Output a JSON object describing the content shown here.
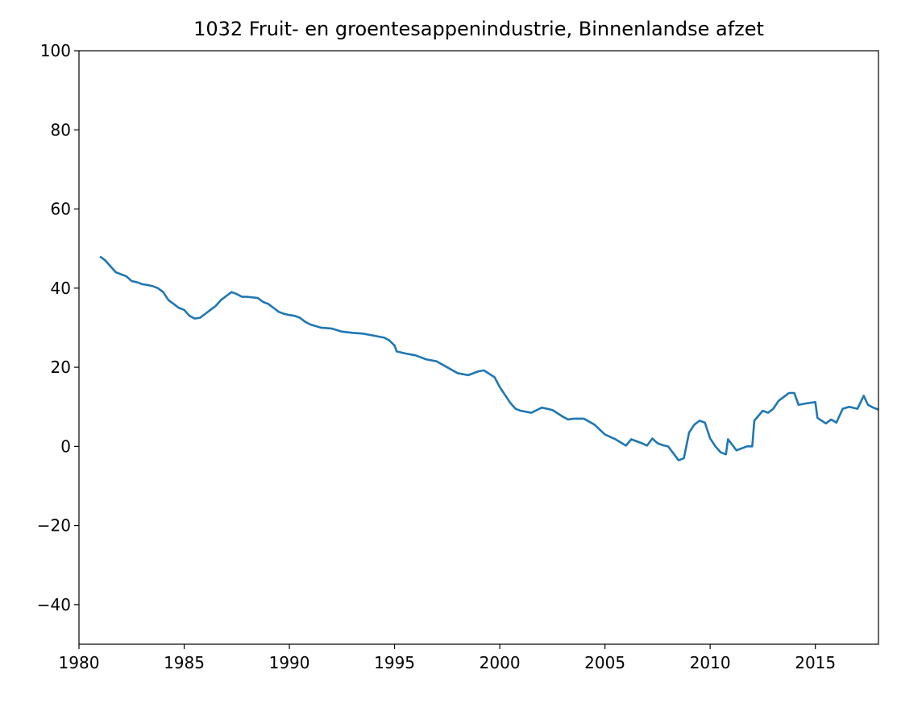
{
  "chart_data": {
    "type": "line",
    "title": "1032 Fruit- en groentesappenindustrie, Binnenlandse afzet",
    "xlim": [
      1980,
      2018
    ],
    "xticks": [
      1980,
      1985,
      1990,
      1995,
      2000,
      2005,
      2010,
      2015
    ],
    "ylim": [
      -50,
      100
    ],
    "yticks": [
      {
        "value": -40,
        "label": "−40"
      },
      {
        "value": -20,
        "label": "−20"
      },
      0,
      20,
      40,
      60,
      80,
      100
    ],
    "grid": false,
    "series": [
      {
        "color": "#1f77b4",
        "x": [
          1981.0,
          1981.25,
          1981.5,
          1981.75,
          1982.0,
          1982.25,
          1982.5,
          1982.75,
          1983.0,
          1983.25,
          1983.5,
          1983.75,
          1984.0,
          1984.25,
          1984.5,
          1984.75,
          1985.0,
          1985.25,
          1985.5,
          1985.75,
          1986.0,
          1986.25,
          1986.5,
          1986.75,
          1987.0,
          1987.25,
          1987.5,
          1987.75,
          1988.0,
          1988.5,
          1988.75,
          1989.0,
          1989.25,
          1989.5,
          1989.75,
          1990.0,
          1990.25,
          1990.5,
          1990.75,
          1991.0,
          1991.5,
          1992.0,
          1992.5,
          1993.0,
          1993.5,
          1994.0,
          1994.5,
          1994.75,
          1995.0,
          1995.1,
          1995.5,
          1996.0,
          1996.5,
          1997.0,
          1997.5,
          1998.0,
          1998.5,
          1999.0,
          1999.25,
          1999.75,
          2000.0,
          2000.25,
          2000.5,
          2000.75,
          2001.0,
          2001.5,
          2002.0,
          2002.5,
          2003.0,
          2003.25,
          2003.5,
          2004.0,
          2004.5,
          2005.0,
          2005.5,
          2006.0,
          2006.25,
          2006.75,
          2007.0,
          2007.25,
          2007.5,
          2007.75,
          2008.0,
          2008.5,
          2008.75,
          2009.0,
          2009.25,
          2009.5,
          2009.75,
          2010.0,
          2010.25,
          2010.5,
          2010.75,
          2010.85,
          2011.25,
          2011.75,
          2012.0,
          2012.1,
          2012.5,
          2012.75,
          2013.0,
          2013.25,
          2013.5,
          2013.75,
          2014.0,
          2014.2,
          2014.5,
          2015.0,
          2015.1,
          2015.5,
          2015.75,
          2016.0,
          2016.3,
          2016.6,
          2017.0,
          2017.3,
          2017.5,
          2017.75,
          2018.0
        ],
        "values": [
          48,
          47,
          45.5,
          44,
          43.5,
          43,
          41.8,
          41.5,
          41,
          40.8,
          40.5,
          40,
          39,
          37,
          36,
          35,
          34.5,
          33,
          32.3,
          32.5,
          33.5,
          34.5,
          35.5,
          37,
          38,
          39,
          38.5,
          37.8,
          37.8,
          37.5,
          36.5,
          36,
          35,
          34,
          33.5,
          33.2,
          33,
          32.5,
          31.5,
          30.8,
          30,
          29.8,
          29,
          28.7,
          28.5,
          28,
          27.5,
          26.8,
          25.5,
          24,
          23.5,
          23,
          22,
          21.5,
          20,
          18.5,
          18,
          19,
          19.2,
          17.5,
          15,
          13,
          11,
          9.5,
          9,
          8.5,
          9.8,
          9.2,
          7.5,
          6.8,
          7,
          7,
          5.5,
          3,
          1.8,
          0.2,
          1.8,
          0.8,
          0.2,
          2,
          0.8,
          0.3,
          0,
          -3.5,
          -3,
          3.5,
          5.5,
          6.5,
          6,
          2,
          0,
          -1.5,
          -2,
          1.8,
          -1,
          0,
          0,
          6.5,
          9,
          8.5,
          9.5,
          11.5,
          12.5,
          13.5,
          13.5,
          10.5,
          10.8,
          11.2,
          7.2,
          5.8,
          6.8,
          6,
          9.5,
          10,
          9.5,
          12.8,
          10.5,
          9.8,
          9.3
        ]
      }
    ]
  }
}
